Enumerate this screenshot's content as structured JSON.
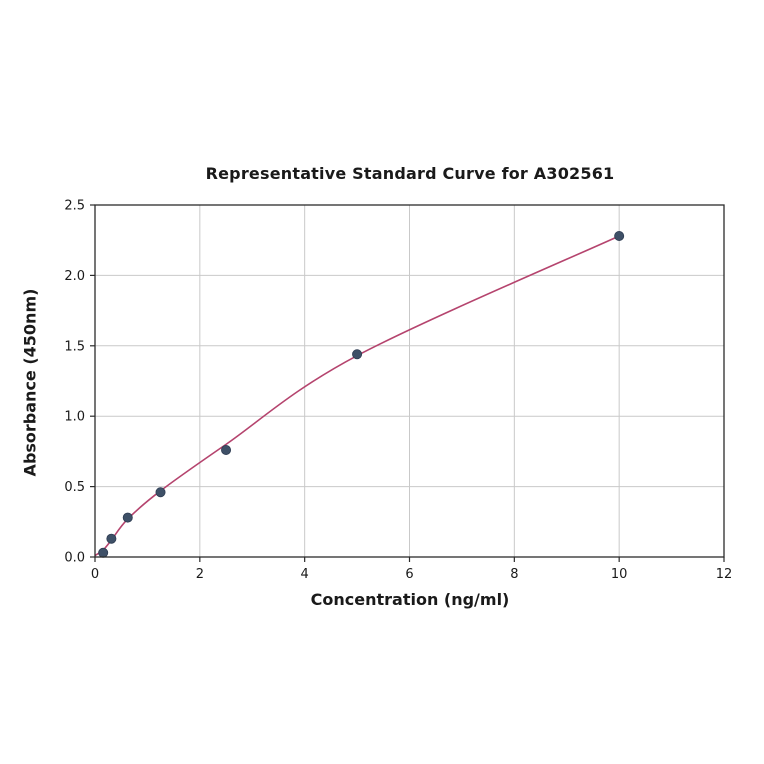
{
  "chart_data": {
    "type": "scatter",
    "title": "Representative Standard Curve for A302561",
    "xlabel": "Concentration (ng/ml)",
    "ylabel": "Absorbance (450nm)",
    "xlim": [
      0,
      12
    ],
    "ylim": [
      0,
      2.5
    ],
    "xticks": [
      0,
      2,
      4,
      6,
      8,
      10,
      12
    ],
    "xtick_labels": [
      "0",
      "2",
      "4",
      "6",
      "8",
      "10",
      "12"
    ],
    "yticks": [
      0.0,
      0.5,
      1.0,
      1.5,
      2.0,
      2.5
    ],
    "ytick_labels": [
      "0.0",
      "0.5",
      "1.0",
      "1.5",
      "2.0",
      "2.5"
    ],
    "grid": true,
    "legend": "none",
    "series": [
      {
        "name": "standard-points",
        "style": "scatter",
        "x": [
          0.156,
          0.3125,
          0.625,
          1.25,
          2.5,
          5,
          10
        ],
        "y": [
          0.03,
          0.13,
          0.28,
          0.46,
          0.76,
          1.44,
          2.28
        ]
      },
      {
        "name": "fitted-curve",
        "style": "smooth-line",
        "x": [
          0,
          0.156,
          0.3125,
          0.625,
          1.25,
          2.5,
          5,
          10
        ],
        "y": [
          0.01,
          0.05,
          0.12,
          0.27,
          0.47,
          0.8,
          1.43,
          2.28
        ]
      }
    ],
    "colors": {
      "curve": "#b5446e",
      "points": "#3e5067",
      "grid": "#c9c9c9",
      "axis_border": "#2b2b2b",
      "background": "#ffffff"
    }
  }
}
